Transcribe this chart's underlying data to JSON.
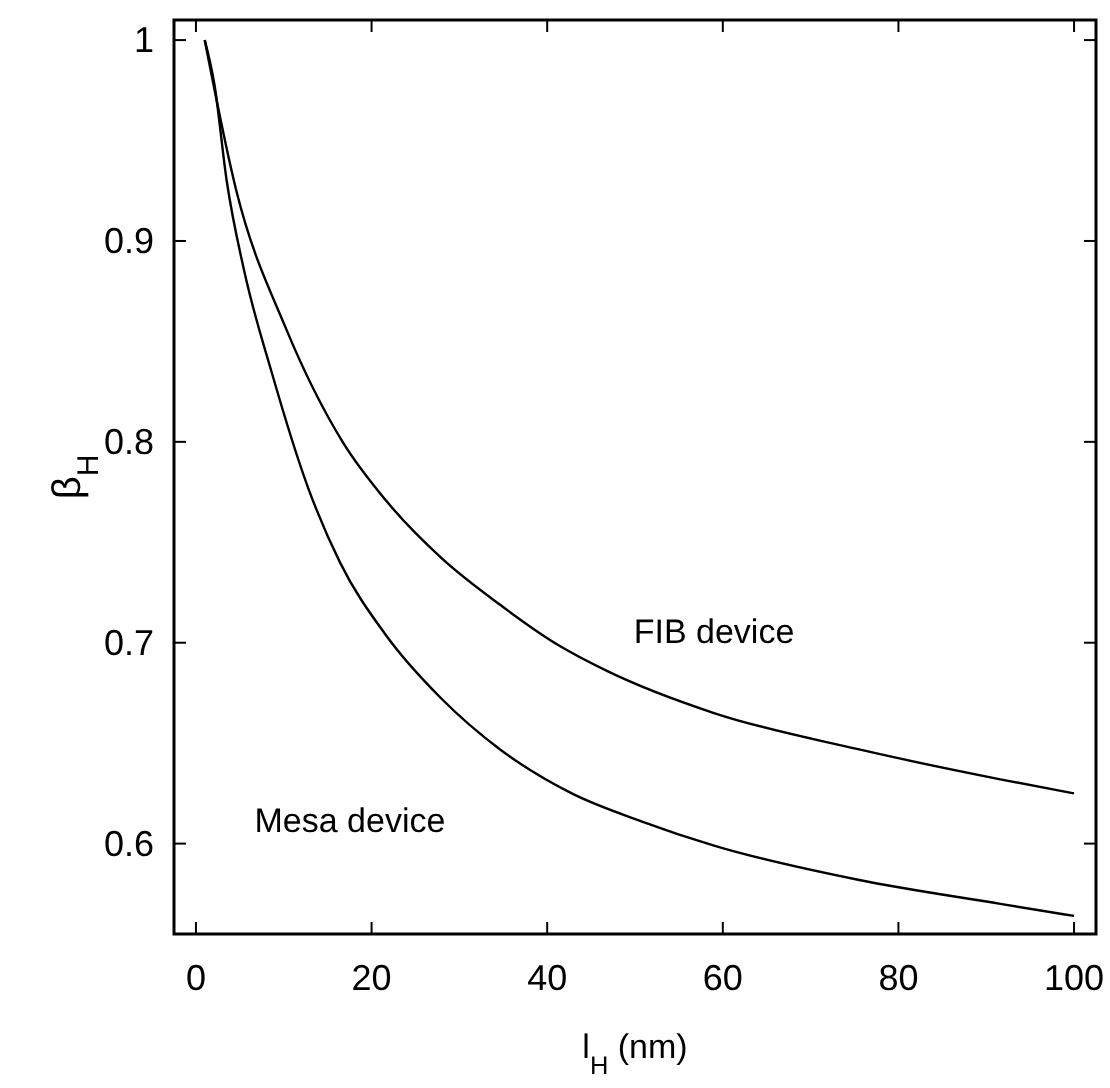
{
  "chart_data": {
    "type": "line",
    "xlabel": "l$_{H}$ (nm)",
    "ylabel": "β$_{H}$",
    "xlim": [
      -2.5,
      102.5
    ],
    "ylim": [
      0.555,
      1.01
    ],
    "xticks": [
      0,
      20,
      40,
      60,
      80,
      100
    ],
    "yticks": [
      0.6,
      0.7,
      0.8,
      0.9,
      1
    ],
    "grid": false,
    "marker": "none",
    "line_style": "solid",
    "series": [
      {
        "name": "FIB device",
        "color": "#000000",
        "x": [
          1,
          4.6,
          10.2,
          16.7,
          21.6,
          28,
          34.6,
          41.2,
          46.8,
          59,
          75.4,
          91.6,
          100
        ],
        "values": [
          1,
          0.925,
          0.857,
          0.8,
          0.771,
          0.742,
          0.719,
          0.699,
          0.686,
          0.665,
          0.647,
          0.632,
          0.625
        ]
      },
      {
        "name": "Mesa device",
        "color": "#000000",
        "x": [
          1,
          2.1,
          3.5,
          5.5,
          8.6,
          12.7,
          16.4,
          21.6,
          28,
          34.6,
          42.8,
          50.8,
          59,
          75.4,
          91.6,
          100
        ],
        "values": [
          1,
          0.978,
          0.93,
          0.885,
          0.835,
          0.778,
          0.74,
          0.704,
          0.672,
          0.647,
          0.625,
          0.611,
          0.599,
          0.582,
          0.57,
          0.564
        ]
      }
    ]
  }
}
